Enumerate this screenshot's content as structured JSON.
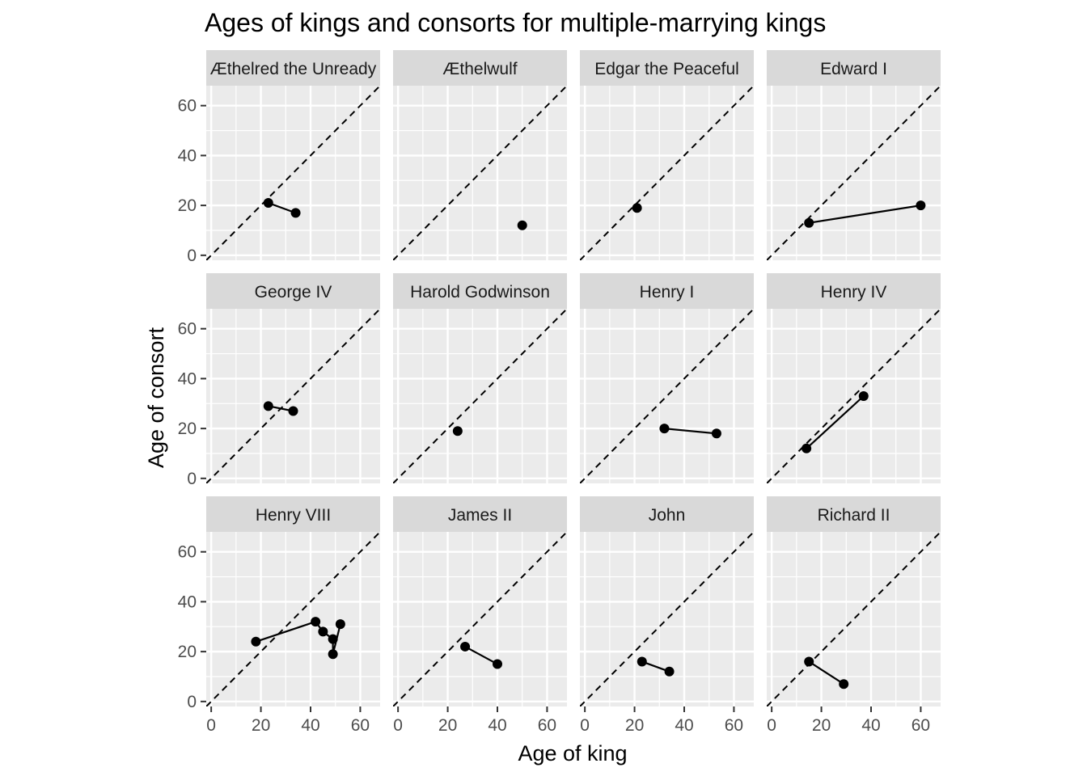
{
  "chart_data": {
    "type": "scatter",
    "title": "Ages of kings and consorts for multiple-marrying kings",
    "xlabel": "Age of king",
    "ylabel": "Age of consort",
    "xlim": [
      -2,
      68
    ],
    "ylim": [
      -2,
      68
    ],
    "x_ticks": [
      0,
      20,
      40,
      60
    ],
    "y_ticks": [
      0,
      20,
      40,
      60
    ],
    "reference_line": "y = x (dashed)",
    "grid": true,
    "layout": "facet grid 3 rows x 4 columns",
    "colors": {
      "panel_background": "#EBEBEB",
      "strip_background": "#D9D9D9",
      "grid_line": "#FFFFFF",
      "point": "#000000",
      "line": "#000000"
    },
    "facets": [
      {
        "name": "Æthelred the Unready",
        "points": [
          [
            23,
            21
          ],
          [
            34,
            17
          ]
        ]
      },
      {
        "name": "Æthelwulf",
        "points": [
          [
            50,
            12
          ]
        ]
      },
      {
        "name": "Edgar the Peaceful",
        "points": [
          [
            21,
            19
          ]
        ]
      },
      {
        "name": "Edward I",
        "points": [
          [
            15,
            13
          ],
          [
            60,
            20
          ]
        ]
      },
      {
        "name": "George IV",
        "points": [
          [
            23,
            29
          ],
          [
            33,
            27
          ]
        ]
      },
      {
        "name": "Harold Godwinson",
        "points": [
          [
            24,
            19
          ]
        ]
      },
      {
        "name": "Henry I",
        "points": [
          [
            32,
            20
          ],
          [
            53,
            18
          ]
        ]
      },
      {
        "name": "Henry IV",
        "points": [
          [
            14,
            12
          ],
          [
            37,
            33
          ]
        ]
      },
      {
        "name": "Henry VIII",
        "points": [
          [
            18,
            24
          ],
          [
            42,
            32
          ],
          [
            45,
            28
          ],
          [
            49,
            25
          ],
          [
            49,
            19
          ],
          [
            52,
            31
          ]
        ]
      },
      {
        "name": "James II",
        "points": [
          [
            27,
            22
          ],
          [
            40,
            15
          ]
        ]
      },
      {
        "name": "John",
        "points": [
          [
            23,
            16
          ],
          [
            34,
            12
          ]
        ]
      },
      {
        "name": "Richard II",
        "points": [
          [
            15,
            16
          ],
          [
            29,
            7
          ]
        ]
      }
    ]
  }
}
